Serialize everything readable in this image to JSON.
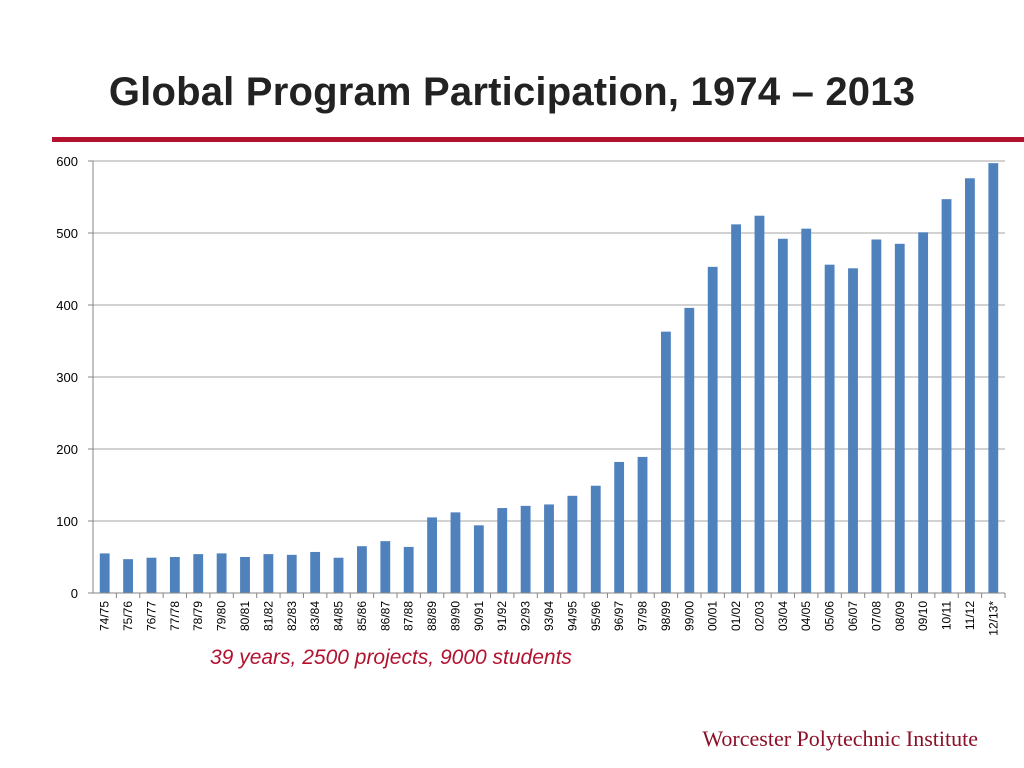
{
  "slide": {
    "title": "Global Program Participation, 1974 – 2013",
    "caption": "39 years, 2500 projects, 9000 students",
    "footer": "Worcester Polytechnic Institute"
  },
  "colors": {
    "bar": "#4f81bd",
    "accent": "#b3122f",
    "grid": "#a6a6a6"
  },
  "chart_data": {
    "type": "bar",
    "categories": [
      "74/75",
      "75/76",
      "76/77",
      "77/78",
      "78/79",
      "79/80",
      "80/81",
      "81/82",
      "82/83",
      "83/84",
      "84/85",
      "85/86",
      "86/87",
      "87/88",
      "88/89",
      "89/90",
      "90/91",
      "91/92",
      "92/93",
      "93/94",
      "94/95",
      "95/96",
      "96/97",
      "97/98",
      "98/99",
      "99/00",
      "00/01",
      "01/02",
      "02/03",
      "03/04",
      "04/05",
      "05/06",
      "06/07",
      "07/08",
      "08/09",
      "09/10",
      "10/11",
      "11/12",
      "12/13*"
    ],
    "values": [
      55,
      47,
      49,
      50,
      54,
      55,
      50,
      54,
      53,
      57,
      49,
      65,
      72,
      64,
      105,
      112,
      94,
      118,
      121,
      123,
      135,
      149,
      182,
      189,
      363,
      396,
      453,
      512,
      524,
      492,
      506,
      456,
      451,
      491,
      485,
      501,
      547,
      576,
      597
    ],
    "ylim": [
      0,
      600
    ],
    "yticks": [
      0,
      100,
      200,
      300,
      400,
      500,
      600
    ],
    "grid": true,
    "legend": "none"
  }
}
